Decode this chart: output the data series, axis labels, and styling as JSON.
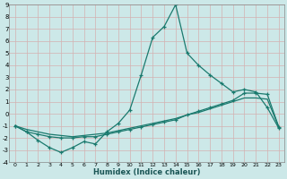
{
  "xlabel": "Humidex (Indice chaleur)",
  "bg_color": "#cce8e8",
  "grid_color": "#aaaaaa",
  "line_color": "#1a7a6e",
  "xlim": [
    -0.5,
    23.5
  ],
  "ylim": [
    -4,
    9
  ],
  "xticks": [
    0,
    1,
    2,
    3,
    4,
    5,
    6,
    7,
    8,
    9,
    10,
    11,
    12,
    13,
    14,
    15,
    16,
    17,
    18,
    19,
    20,
    21,
    22,
    23
  ],
  "yticks": [
    -4,
    -3,
    -2,
    -1,
    0,
    1,
    2,
    3,
    4,
    5,
    6,
    7,
    8,
    9
  ],
  "s1_x": [
    0,
    1,
    2,
    3,
    4,
    5,
    6,
    7,
    8,
    9,
    10,
    11,
    12,
    13,
    14,
    15,
    16,
    17,
    18,
    19,
    20,
    21,
    22,
    23
  ],
  "s1_y": [
    -1.0,
    -1.5,
    -2.2,
    -2.8,
    -3.2,
    -2.8,
    -2.3,
    -2.5,
    -1.5,
    -0.8,
    0.3,
    3.2,
    6.3,
    7.2,
    9.0,
    5.0,
    4.0,
    3.2,
    2.5,
    1.8,
    2.0,
    1.8,
    0.5,
    -1.2
  ],
  "s2_x": [
    0,
    1,
    2,
    3,
    4,
    5,
    6,
    7,
    8,
    9,
    10,
    11,
    12,
    13,
    14,
    15,
    16,
    17,
    18,
    19,
    20,
    21,
    22,
    23
  ],
  "s2_y": [
    -1.0,
    -1.5,
    -1.7,
    -1.9,
    -2.0,
    -2.0,
    -1.9,
    -1.9,
    -1.7,
    -1.5,
    -1.3,
    -1.1,
    -0.9,
    -0.7,
    -0.5,
    -0.1,
    0.2,
    0.5,
    0.8,
    1.1,
    1.7,
    1.7,
    1.6,
    -1.1
  ],
  "s3_x": [
    0,
    1,
    2,
    3,
    4,
    5,
    6,
    7,
    8,
    9,
    10,
    11,
    12,
    13,
    14,
    15,
    16,
    17,
    18,
    19,
    20,
    21,
    22,
    23
  ],
  "s3_y": [
    -1.0,
    -1.3,
    -1.5,
    -1.7,
    -1.8,
    -1.9,
    -1.8,
    -1.7,
    -1.6,
    -1.4,
    -1.2,
    -1.0,
    -0.8,
    -0.6,
    -0.4,
    -0.1,
    0.1,
    0.4,
    0.7,
    1.0,
    1.3,
    1.3,
    1.2,
    -1.1
  ]
}
